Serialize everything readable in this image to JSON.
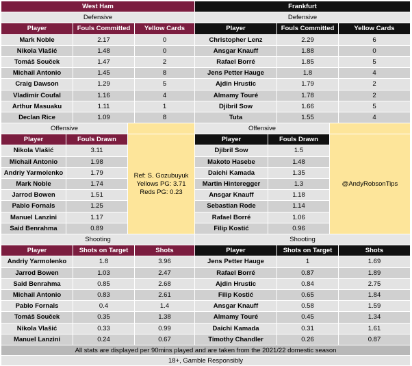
{
  "teams": {
    "home": "West Ham",
    "away": "Frankfurt"
  },
  "sections": {
    "defensive": "Defensive",
    "offensive": "Offensive",
    "shooting": "Shooting"
  },
  "defensive_headers": {
    "player": "Player",
    "fouls": "Fouls Committed",
    "yellow": "Yellow Cards"
  },
  "offensive_headers": {
    "player": "Player",
    "fouls": "Fouls Drawn"
  },
  "shooting_headers": {
    "player": "Player",
    "sot": "Shots on Target",
    "shots": "Shots"
  },
  "wh_defensive": [
    {
      "player": "Mark Noble",
      "fouls": "2.17",
      "yellow": "0"
    },
    {
      "player": "Nikola Vlašić",
      "fouls": "1.48",
      "yellow": "0"
    },
    {
      "player": "Tomáš Souček",
      "fouls": "1.47",
      "yellow": "2"
    },
    {
      "player": "Michail Antonio",
      "fouls": "1.45",
      "yellow": "8"
    },
    {
      "player": "Craig Dawson",
      "fouls": "1.29",
      "yellow": "5"
    },
    {
      "player": "Vladimír Coufal",
      "fouls": "1.16",
      "yellow": "4"
    },
    {
      "player": "Arthur Masuaku",
      "fouls": "1.11",
      "yellow": "1"
    },
    {
      "player": "Declan Rice",
      "fouls": "1.09",
      "yellow": "8"
    }
  ],
  "fr_defensive": [
    {
      "player": "Christopher Lenz",
      "fouls": "2.29",
      "yellow": "6"
    },
    {
      "player": "Ansgar Knauff",
      "fouls": "1.88",
      "yellow": "0"
    },
    {
      "player": "Rafael Borré",
      "fouls": "1.85",
      "yellow": "5"
    },
    {
      "player": "Jens Petter Hauge",
      "fouls": "1.8",
      "yellow": "4"
    },
    {
      "player": "Ajdin Hrustic",
      "fouls": "1.79",
      "yellow": "2"
    },
    {
      "player": "Almamy Touré",
      "fouls": "1.78",
      "yellow": "2"
    },
    {
      "player": "Djibril Sow",
      "fouls": "1.66",
      "yellow": "5"
    },
    {
      "player": "Tuta",
      "fouls": "1.55",
      "yellow": "4"
    }
  ],
  "wh_offensive": [
    {
      "player": "Nikola Vlašić",
      "fouls": "3.11"
    },
    {
      "player": "Michail Antonio",
      "fouls": "1.98"
    },
    {
      "player": "Andriy Yarmolenko",
      "fouls": "1.79"
    },
    {
      "player": "Mark Noble",
      "fouls": "1.74"
    },
    {
      "player": "Jarrod Bowen",
      "fouls": "1.51"
    },
    {
      "player": "Pablo Fornals",
      "fouls": "1.25"
    },
    {
      "player": "Manuel Lanzini",
      "fouls": "1.17"
    },
    {
      "player": "Said Benrahma",
      "fouls": "0.89"
    }
  ],
  "fr_offensive": [
    {
      "player": "Djibril Sow",
      "fouls": "1.5"
    },
    {
      "player": "Makoto Hasebe",
      "fouls": "1.48"
    },
    {
      "player": "Daichi Kamada",
      "fouls": "1.35"
    },
    {
      "player": "Martin Hinteregger",
      "fouls": "1.3"
    },
    {
      "player": "Ansgar Knauff",
      "fouls": "1.18"
    },
    {
      "player": "Sebastian Rode",
      "fouls": "1.14"
    },
    {
      "player": "Rafael Borré",
      "fouls": "1.06"
    },
    {
      "player": "Filip Kostić",
      "fouls": "0.96"
    }
  ],
  "ref_box": {
    "line1": "Ref: S. Gozubuyuk",
    "line2": "Yellows PG: 3.71",
    "line3": "Reds PG: 0.23"
  },
  "tips_box": {
    "handle": "@AndyRobsonTips"
  },
  "wh_shooting": [
    {
      "player": "Andriy Yarmolenko",
      "sot": "1.8",
      "shots": "3.96"
    },
    {
      "player": "Jarrod Bowen",
      "sot": "1.03",
      "shots": "2.47"
    },
    {
      "player": "Said Benrahma",
      "sot": "0.85",
      "shots": "2.68"
    },
    {
      "player": "Michail Antonio",
      "sot": "0.83",
      "shots": "2.61"
    },
    {
      "player": "Pablo Fornals",
      "sot": "0.4",
      "shots": "1.4"
    },
    {
      "player": "Tomáš Souček",
      "sot": "0.35",
      "shots": "1.38"
    },
    {
      "player": "Nikola Vlašić",
      "sot": "0.33",
      "shots": "0.99"
    },
    {
      "player": "Manuel Lanzini",
      "sot": "0.24",
      "shots": "0.67"
    }
  ],
  "fr_shooting": [
    {
      "player": "Jens Petter Hauge",
      "sot": "1",
      "shots": "1.69"
    },
    {
      "player": "Rafael Borré",
      "sot": "0.87",
      "shots": "1.89"
    },
    {
      "player": "Ajdin Hrustic",
      "sot": "0.84",
      "shots": "2.75"
    },
    {
      "player": "Filip Kostić",
      "sot": "0.65",
      "shots": "1.84"
    },
    {
      "player": "Ansgar Knauff",
      "sot": "0.58",
      "shots": "1.59"
    },
    {
      "player": "Almamy Touré",
      "sot": "0.45",
      "shots": "1.34"
    },
    {
      "player": "Daichi Kamada",
      "sot": "0.31",
      "shots": "1.61"
    },
    {
      "player": "Timothy Chandler",
      "sot": "0.26",
      "shots": "0.87"
    }
  ],
  "footer": {
    "note": "All stats are displayed per 90mins played and are taken from the 2021/22 domestic season",
    "disclaimer": "18+, Gamble Responsibly"
  },
  "colors": {
    "west_ham": "#7b1d3f",
    "frankfurt": "#111111",
    "highlight": "#fde59a"
  }
}
